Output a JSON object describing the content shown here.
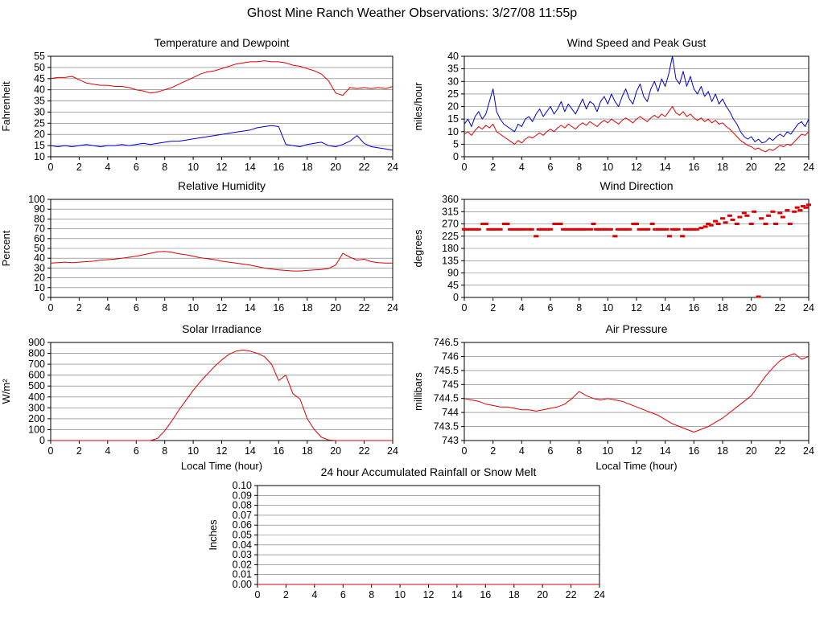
{
  "page": {
    "title": "Ghost Mine Ranch Weather Observations: 3/27/08 11:55p"
  },
  "colors": {
    "series_red": "#dd0000",
    "series_blue": "#0000cc",
    "grid": "#707070",
    "axis": "#000000"
  },
  "chart_data": [
    {
      "id": "temperature_dewpoint",
      "type": "line",
      "title": "Temperature and Dewpoint",
      "ylabel": "Fahrenheit",
      "xlabel": null,
      "xlim": [
        0,
        24
      ],
      "xtick": 2,
      "ylim": [
        10,
        55
      ],
      "ytick": 5,
      "series": [
        {
          "name": "temperature",
          "color": "#dd0000",
          "x0": 0,
          "dx": 0.5,
          "y": [
            45,
            45.5,
            45.5,
            46,
            44.5,
            43,
            42.5,
            42,
            42,
            41.5,
            41.5,
            41,
            40,
            39.5,
            38.5,
            39,
            40,
            41,
            42.5,
            44,
            45.5,
            47,
            48,
            48.5,
            49.5,
            50.5,
            51.5,
            52,
            52.5,
            52.5,
            53,
            52.5,
            52.5,
            52,
            51,
            50.5,
            49.5,
            48.5,
            47,
            44,
            38.5,
            37.5,
            41,
            40.5,
            41,
            40.5,
            41,
            40.5,
            41.5
          ]
        },
        {
          "name": "dewpoint",
          "color": "#0000cc",
          "x0": 0,
          "dx": 0.5,
          "y": [
            15,
            14.5,
            15,
            14.5,
            15,
            15.5,
            15,
            14.5,
            15,
            15,
            15.5,
            15,
            15.5,
            16,
            15.5,
            16,
            16.5,
            17,
            17,
            17.5,
            18,
            18.5,
            19,
            19.5,
            20,
            20.5,
            21,
            21.5,
            22,
            23,
            23.5,
            24,
            23.5,
            15.5,
            15,
            14.5,
            15.5,
            16,
            16.5,
            15,
            14.5,
            15.5,
            17,
            19.5,
            16,
            14.5,
            14,
            13.5,
            13
          ]
        }
      ]
    },
    {
      "id": "wind_speed_gust",
      "type": "line",
      "title": "Wind Speed and Peak Gust",
      "ylabel": "miles/hour",
      "xlabel": null,
      "xlim": [
        0,
        24
      ],
      "xtick": 2,
      "ylim": [
        0,
        40
      ],
      "ytick": 5,
      "series": [
        {
          "name": "peak_gust",
          "color": "#0000cc",
          "x0": 0,
          "dx": 0.25,
          "y": [
            13,
            15,
            12,
            16,
            18,
            15,
            17,
            22,
            27,
            18,
            15,
            13,
            12,
            11,
            10,
            13,
            12,
            15,
            16,
            14,
            17,
            19,
            16,
            18,
            20,
            17,
            19,
            22,
            18,
            21,
            19,
            17,
            20,
            23,
            19,
            22,
            21,
            18,
            22,
            24,
            21,
            25,
            22,
            20,
            24,
            27,
            23,
            21,
            26,
            29,
            24,
            22,
            27,
            30,
            26,
            31,
            28,
            33,
            40,
            31,
            29,
            34,
            28,
            32,
            27,
            25,
            28,
            24,
            26,
            22,
            25,
            21,
            23,
            20,
            18,
            15,
            13,
            10,
            8,
            7,
            8,
            6,
            7,
            5.5,
            6,
            7.5,
            6.5,
            8,
            9,
            8,
            10,
            9,
            11,
            13,
            14,
            12,
            15
          ]
        },
        {
          "name": "wind_speed",
          "color": "#dd0000",
          "x0": 0,
          "dx": 0.25,
          "y": [
            9,
            10,
            8.5,
            10.5,
            12,
            11,
            12.5,
            11.5,
            13,
            10,
            9,
            8,
            7,
            6,
            5,
            6.5,
            5.5,
            7,
            8,
            7.5,
            8.5,
            9.5,
            8.5,
            10,
            11,
            10,
            11.5,
            12.5,
            11.5,
            13,
            12,
            11,
            12.5,
            13.5,
            12.5,
            14,
            13,
            12,
            13.5,
            14.5,
            13.5,
            15,
            14,
            13,
            14.5,
            15.5,
            14.5,
            13.5,
            15,
            16,
            15,
            14,
            15.5,
            16.5,
            15.5,
            17,
            16,
            18,
            20,
            17.5,
            16.5,
            18,
            16,
            17,
            15.5,
            14.5,
            15.5,
            14,
            15,
            13.5,
            14.5,
            13,
            13.5,
            12,
            11,
            9.5,
            8,
            6.5,
            5.5,
            4.5,
            4,
            3,
            3.5,
            2.5,
            2,
            3,
            2.5,
            3.5,
            4.5,
            4,
            5,
            4.5,
            6,
            7.5,
            9,
            8.5,
            10
          ]
        }
      ]
    },
    {
      "id": "relative_humidity",
      "type": "line",
      "title": "Relative Humidity",
      "ylabel": "Percent",
      "xlabel": null,
      "xlim": [
        0,
        24
      ],
      "xtick": 2,
      "ylim": [
        0,
        100
      ],
      "ytick": 10,
      "series": [
        {
          "name": "humidity",
          "color": "#dd0000",
          "x0": 0,
          "dx": 0.5,
          "y": [
            35,
            35.5,
            36,
            35.5,
            36,
            36.5,
            37,
            38,
            38.5,
            39,
            40,
            41,
            42,
            43.5,
            45,
            46.5,
            47,
            46,
            44.5,
            43.5,
            42,
            40.5,
            39.5,
            38.5,
            37,
            36,
            35,
            34,
            33,
            31.5,
            30,
            29,
            28,
            27.5,
            27,
            27,
            27.5,
            28,
            28.5,
            29.5,
            33,
            45,
            41,
            38,
            39,
            36.5,
            35.5,
            35,
            35
          ]
        }
      ]
    },
    {
      "id": "wind_direction",
      "type": "scatter",
      "title": "Wind Direction",
      "ylabel": "degrees",
      "xlabel": null,
      "xlim": [
        0,
        24
      ],
      "xtick": 2,
      "ylim": [
        0,
        360
      ],
      "ytick": 45,
      "series": [
        {
          "name": "direction",
          "color": "#dd0000",
          "points": [
            [
              0,
              250
            ],
            [
              0.2,
              250
            ],
            [
              0.4,
              250
            ],
            [
              0.6,
              250
            ],
            [
              0.8,
              250
            ],
            [
              1.0,
              250
            ],
            [
              1.3,
              270
            ],
            [
              1.5,
              270
            ],
            [
              1.7,
              250
            ],
            [
              1.9,
              250
            ],
            [
              2.1,
              250
            ],
            [
              2.3,
              250
            ],
            [
              2.5,
              250
            ],
            [
              2.8,
              270
            ],
            [
              3.0,
              270
            ],
            [
              3.2,
              250
            ],
            [
              3.4,
              250
            ],
            [
              3.6,
              250
            ],
            [
              3.8,
              250
            ],
            [
              4.0,
              250
            ],
            [
              4.2,
              250
            ],
            [
              4.5,
              250
            ],
            [
              4.7,
              250
            ],
            [
              5.0,
              225
            ],
            [
              5.2,
              250
            ],
            [
              5.4,
              250
            ],
            [
              5.6,
              250
            ],
            [
              5.8,
              250
            ],
            [
              6.0,
              250
            ],
            [
              6.3,
              270
            ],
            [
              6.5,
              270
            ],
            [
              6.7,
              270
            ],
            [
              6.9,
              250
            ],
            [
              7.1,
              250
            ],
            [
              7.3,
              250
            ],
            [
              7.5,
              250
            ],
            [
              7.7,
              250
            ],
            [
              7.9,
              250
            ],
            [
              8.1,
              250
            ],
            [
              8.3,
              250
            ],
            [
              8.5,
              250
            ],
            [
              8.8,
              250
            ],
            [
              9.0,
              270
            ],
            [
              9.2,
              250
            ],
            [
              9.4,
              250
            ],
            [
              9.6,
              250
            ],
            [
              9.8,
              250
            ],
            [
              10.0,
              250
            ],
            [
              10.2,
              250
            ],
            [
              10.5,
              225
            ],
            [
              10.7,
              250
            ],
            [
              10.9,
              250
            ],
            [
              11.1,
              250
            ],
            [
              11.3,
              250
            ],
            [
              11.5,
              250
            ],
            [
              11.8,
              270
            ],
            [
              12.0,
              270
            ],
            [
              12.2,
              250
            ],
            [
              12.4,
              250
            ],
            [
              12.6,
              250
            ],
            [
              12.8,
              250
            ],
            [
              13.1,
              270
            ],
            [
              13.3,
              250
            ],
            [
              13.5,
              250
            ],
            [
              13.7,
              250
            ],
            [
              13.9,
              250
            ],
            [
              14.1,
              250
            ],
            [
              14.3,
              225
            ],
            [
              14.5,
              250
            ],
            [
              14.7,
              250
            ],
            [
              14.9,
              250
            ],
            [
              15.2,
              225
            ],
            [
              15.4,
              250
            ],
            [
              15.6,
              250
            ],
            [
              15.8,
              250
            ],
            [
              16.0,
              250
            ],
            [
              16.2,
              250
            ],
            [
              16.5,
              255
            ],
            [
              16.8,
              260
            ],
            [
              17.0,
              270
            ],
            [
              17.2,
              265
            ],
            [
              17.5,
              280
            ],
            [
              17.7,
              270
            ],
            [
              18.0,
              290
            ],
            [
              18.2,
              275
            ],
            [
              18.5,
              300
            ],
            [
              18.7,
              285
            ],
            [
              19.0,
              270
            ],
            [
              19.2,
              295
            ],
            [
              19.5,
              310
            ],
            [
              19.7,
              300
            ],
            [
              20.0,
              270
            ],
            [
              20.2,
              315
            ],
            [
              20.5,
              3
            ],
            [
              20.7,
              290
            ],
            [
              21.0,
              270
            ],
            [
              21.2,
              300
            ],
            [
              21.5,
              315
            ],
            [
              21.7,
              270
            ],
            [
              22.0,
              310
            ],
            [
              22.2,
              295
            ],
            [
              22.5,
              320
            ],
            [
              22.7,
              270
            ],
            [
              23.0,
              315
            ],
            [
              23.2,
              330
            ],
            [
              23.4,
              320
            ],
            [
              23.6,
              335
            ],
            [
              23.8,
              330
            ],
            [
              24.0,
              340
            ]
          ]
        }
      ]
    },
    {
      "id": "solar_irradiance",
      "type": "line",
      "title": "Solar Irradiance",
      "ylabel": "W/m²",
      "xlabel": "Local Time (hour)",
      "xlim": [
        0,
        24
      ],
      "xtick": 2,
      "ylim": [
        0,
        900
      ],
      "ytick": 100,
      "series": [
        {
          "name": "irradiance",
          "color": "#dd0000",
          "x0": 0,
          "dx": 0.5,
          "y": [
            0,
            0,
            0,
            0,
            0,
            0,
            0,
            0,
            0,
            0,
            0,
            0,
            0,
            0,
            0,
            20,
            90,
            180,
            280,
            370,
            460,
            540,
            610,
            680,
            740,
            790,
            820,
            830,
            820,
            800,
            770,
            700,
            550,
            600,
            430,
            380,
            200,
            100,
            30,
            5,
            0,
            0,
            0,
            0,
            0,
            0,
            0,
            0,
            0
          ]
        }
      ]
    },
    {
      "id": "air_pressure",
      "type": "line",
      "title": "Air Pressure",
      "ylabel": "millibars",
      "xlabel": "Local Time (hour)",
      "xlim": [
        0,
        24
      ],
      "xtick": 2,
      "ylim": [
        743,
        746.5
      ],
      "ytick": 0.5,
      "series": [
        {
          "name": "pressure",
          "color": "#dd0000",
          "x0": 0,
          "dx": 0.5,
          "y": [
            744.5,
            744.45,
            744.4,
            744.3,
            744.25,
            744.2,
            744.2,
            744.15,
            744.1,
            744.1,
            744.05,
            744.1,
            744.15,
            744.2,
            744.3,
            744.5,
            744.75,
            744.6,
            744.5,
            744.45,
            744.5,
            744.45,
            744.4,
            744.3,
            744.2,
            744.1,
            744,
            743.9,
            743.75,
            743.6,
            743.5,
            743.4,
            743.3,
            743.4,
            743.5,
            743.65,
            743.8,
            744,
            744.2,
            744.4,
            744.6,
            744.95,
            745.3,
            745.6,
            745.85,
            746,
            746.1,
            745.9,
            746
          ]
        }
      ]
    },
    {
      "id": "rainfall",
      "type": "line",
      "title": "24 hour Accumulated Rainfall or Snow Melt",
      "ylabel": "Inches",
      "xlabel": null,
      "xlim": [
        0,
        24
      ],
      "xtick": 2,
      "ylim": [
        0,
        0.1
      ],
      "ytick": 0.01,
      "ydec": 2,
      "series": [
        {
          "name": "rainfall",
          "color": "#dd0000",
          "x0": 0,
          "dx": 12,
          "y": [
            0,
            0,
            0
          ]
        }
      ]
    }
  ]
}
